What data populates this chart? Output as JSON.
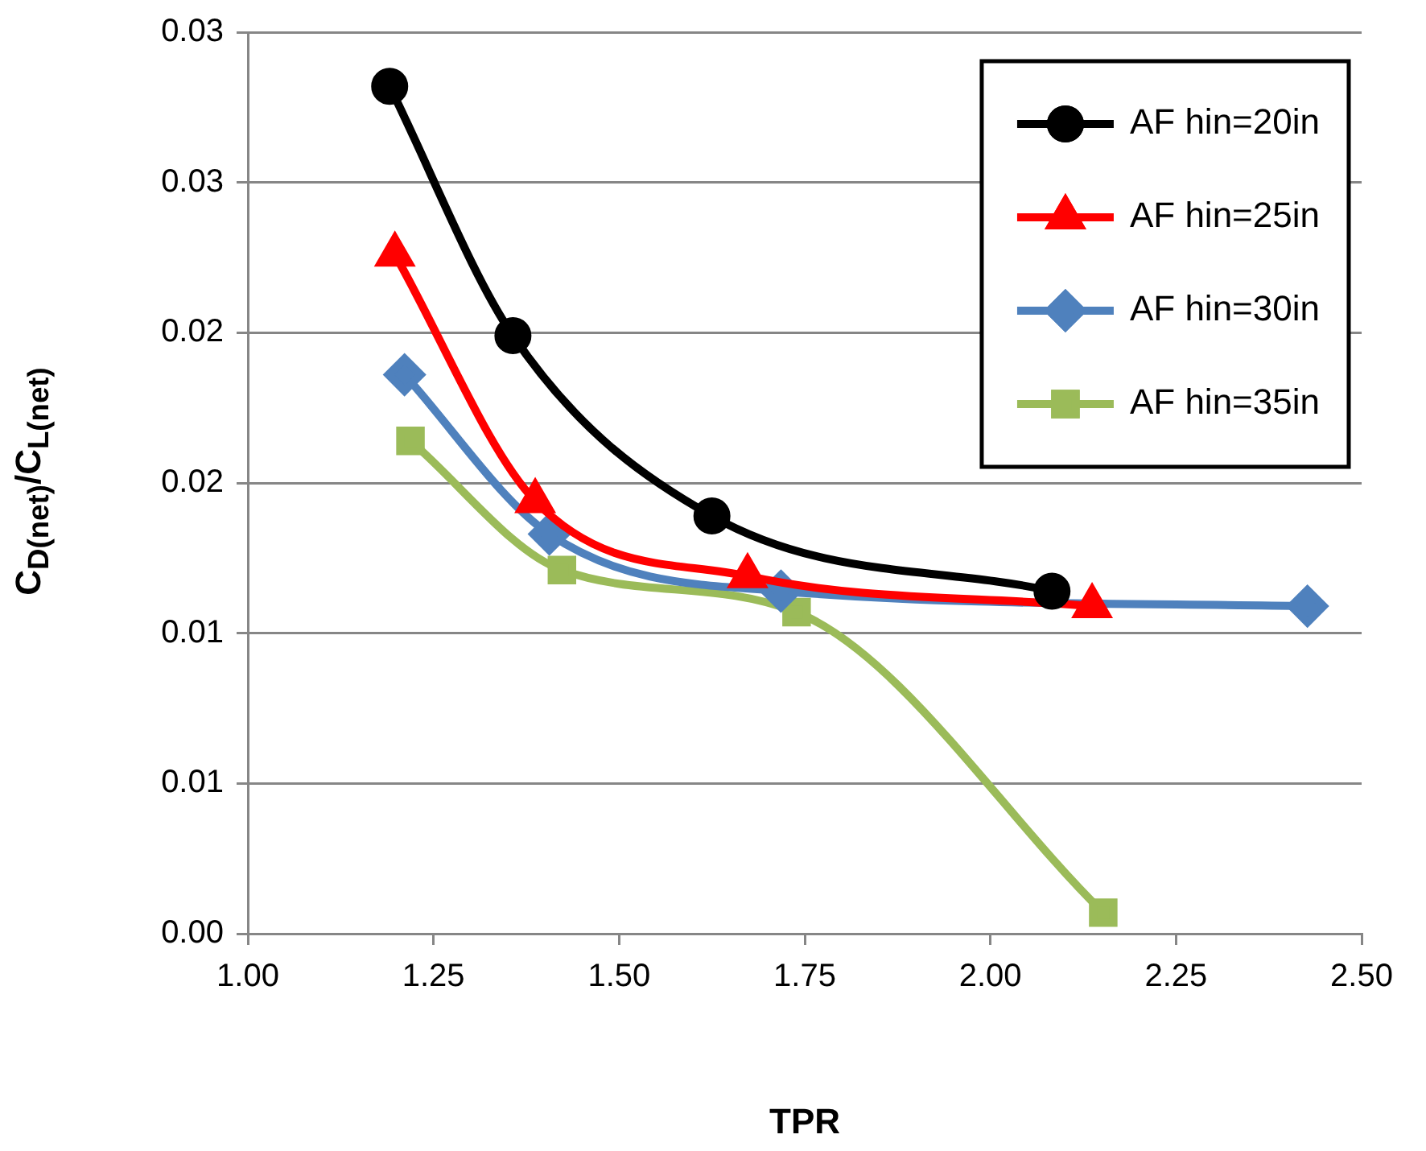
{
  "chart_data": {
    "type": "line",
    "xlabel": "TPR",
    "ylabel": "C$_{D(net)}$/C$_{L(net)}$",
    "xlim": [
      1.0,
      2.5
    ],
    "xticks": [
      {
        "value": 1.0,
        "label": "1.00"
      },
      {
        "value": 1.25,
        "label": "1.25"
      },
      {
        "value": 1.5,
        "label": "1.50"
      },
      {
        "value": 1.75,
        "label": "1.75"
      },
      {
        "value": 2.0,
        "label": "2.00"
      },
      {
        "value": 2.25,
        "label": "2.25"
      },
      {
        "value": 2.5,
        "label": "2.50"
      }
    ],
    "ylim": [
      0,
      0.03
    ],
    "yticks": [
      {
        "value": 0,
        "label": "0.00"
      },
      {
        "value": 0.005,
        "label": "0.01"
      },
      {
        "value": 0.01,
        "label": "0.01"
      },
      {
        "value": 0.015,
        "label": "0.02"
      },
      {
        "value": 0.02,
        "label": "0.02"
      },
      {
        "value": 0.025,
        "label": "0.03"
      },
      {
        "value": 0.03,
        "label": "0.03"
      }
    ],
    "grid": "y",
    "legend": "top right",
    "line_style": "solid",
    "series": [
      {
        "name": "AF hin=20in",
        "color": "#000000",
        "marker": "circle",
        "x": [
          1.191,
          1.357,
          1.625,
          2.083
        ],
        "values": [
          0.0282,
          0.0199,
          0.0139,
          0.0114
        ]
      },
      {
        "name": "AF hin=25in",
        "color": "#ff0000",
        "marker": "triangle",
        "x": [
          1.198,
          1.387,
          1.673,
          2.137
        ],
        "values": [
          0.0226,
          0.0144,
          0.0119,
          0.0109
        ]
      },
      {
        "name": "AF hin=30in",
        "color": "#4f81bd",
        "marker": "diamond",
        "x": [
          1.211,
          1.406,
          1.718,
          2.427
        ],
        "values": [
          0.0186,
          0.0133,
          0.0114,
          0.0109
        ]
      },
      {
        "name": "AF hin=35in",
        "color": "#9bbb59",
        "marker": "square",
        "x": [
          1.219,
          1.423,
          1.739,
          2.152
        ],
        "values": [
          0.0164,
          0.0121,
          0.0107,
          0.0007
        ]
      }
    ]
  }
}
